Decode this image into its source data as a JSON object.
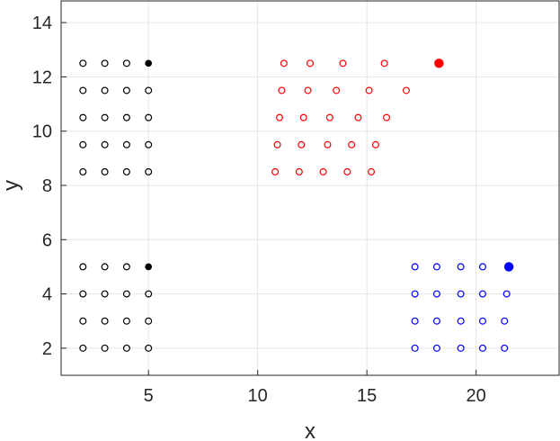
{
  "chart_data": {
    "type": "scatter",
    "title": "",
    "xlabel": "x",
    "ylabel": "y",
    "xlim": [
      1,
      23.8
    ],
    "ylim": [
      1,
      14.8
    ],
    "xticks": [
      5,
      10,
      15,
      20
    ],
    "yticks": [
      2,
      4,
      6,
      8,
      10,
      12,
      14
    ],
    "grid": true,
    "series": [
      {
        "color": "#000000",
        "marker": "open-circle",
        "points": [
          [
            2,
            12.5
          ],
          [
            3,
            12.5
          ],
          [
            4,
            12.5
          ],
          [
            2,
            11.5
          ],
          [
            3,
            11.5
          ],
          [
            4,
            11.5
          ],
          [
            5,
            11.5
          ],
          [
            2,
            10.5
          ],
          [
            3,
            10.5
          ],
          [
            4,
            10.5
          ],
          [
            5,
            10.5
          ],
          [
            2,
            9.5
          ],
          [
            3,
            9.5
          ],
          [
            4,
            9.5
          ],
          [
            5,
            9.5
          ],
          [
            2,
            8.5
          ],
          [
            3,
            8.5
          ],
          [
            4,
            8.5
          ],
          [
            5,
            8.5
          ],
          [
            2,
            5
          ],
          [
            3,
            5
          ],
          [
            4,
            5
          ],
          [
            2,
            4
          ],
          [
            3,
            4
          ],
          [
            4,
            4
          ],
          [
            5,
            4
          ],
          [
            2,
            3
          ],
          [
            3,
            3
          ],
          [
            4,
            3
          ],
          [
            5,
            3
          ],
          [
            2,
            2
          ],
          [
            3,
            2
          ],
          [
            4,
            2
          ],
          [
            5,
            2
          ]
        ]
      },
      {
        "color": "#000000",
        "marker": "filled-circle-small",
        "points": [
          [
            5,
            12.5
          ],
          [
            5,
            5
          ]
        ]
      },
      {
        "color": "#ff0000",
        "marker": "open-circle",
        "points": [
          [
            11.2,
            12.5
          ],
          [
            12.4,
            12.5
          ],
          [
            13.9,
            12.5
          ],
          [
            15.8,
            12.5
          ],
          [
            11.1,
            11.5
          ],
          [
            12.3,
            11.5
          ],
          [
            13.6,
            11.5
          ],
          [
            15.1,
            11.5
          ],
          [
            16.8,
            11.5
          ],
          [
            11,
            10.5
          ],
          [
            12.1,
            10.5
          ],
          [
            13.3,
            10.5
          ],
          [
            14.6,
            10.5
          ],
          [
            15.9,
            10.5
          ],
          [
            10.9,
            9.5
          ],
          [
            12,
            9.5
          ],
          [
            13.2,
            9.5
          ],
          [
            14.3,
            9.5
          ],
          [
            15.4,
            9.5
          ],
          [
            10.8,
            8.5
          ],
          [
            11.9,
            8.5
          ],
          [
            13,
            8.5
          ],
          [
            14.1,
            8.5
          ],
          [
            15.2,
            8.5
          ]
        ]
      },
      {
        "color": "#ff0000",
        "marker": "filled-circle",
        "points": [
          [
            18.3,
            12.5
          ]
        ]
      },
      {
        "color": "#0000ff",
        "marker": "open-circle",
        "points": [
          [
            17.2,
            5
          ],
          [
            18.2,
            5
          ],
          [
            19.3,
            5
          ],
          [
            20.3,
            5
          ],
          [
            17.2,
            4
          ],
          [
            18.2,
            4
          ],
          [
            19.3,
            4
          ],
          [
            20.3,
            4
          ],
          [
            21.4,
            4
          ],
          [
            17.2,
            3
          ],
          [
            18.2,
            3
          ],
          [
            19.3,
            3
          ],
          [
            20.3,
            3
          ],
          [
            21.3,
            3
          ],
          [
            17.2,
            2
          ],
          [
            18.2,
            2
          ],
          [
            19.3,
            2
          ],
          [
            20.3,
            2
          ],
          [
            21.3,
            2
          ]
        ]
      },
      {
        "color": "#0000ff",
        "marker": "filled-circle",
        "points": [
          [
            21.5,
            5
          ]
        ]
      }
    ]
  }
}
